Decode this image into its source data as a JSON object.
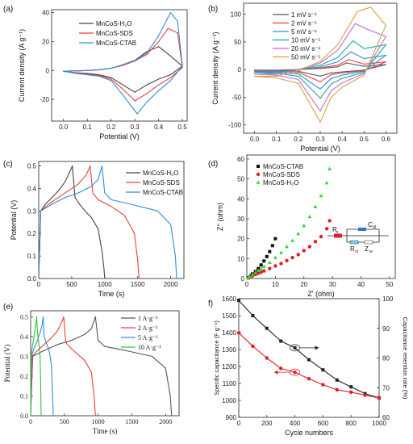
{
  "chart_data": [
    {
      "type": "line",
      "panel": "(a)",
      "xlabel": "Potential (V)",
      "ylabel": "Current density (A g⁻¹)",
      "xlim": [
        -0.05,
        0.52
      ],
      "ylim": [
        -35,
        42
      ],
      "xticks": [
        0.0,
        0.1,
        0.2,
        0.3,
        0.4,
        0.5
      ],
      "xtick_labels": [
        "0.0",
        "0.1",
        "0.2",
        "0.3",
        "0.4",
        "0.5"
      ],
      "yticks": [
        -20,
        0,
        20,
        40
      ],
      "ytick_labels": [
        "-20",
        "0",
        "20",
        "40"
      ],
      "legend": "top-left",
      "series": [
        {
          "name": "MnCoS-H₂O",
          "color": "#444444",
          "x": [
            0.0,
            0.05,
            0.1,
            0.15,
            0.2,
            0.25,
            0.3,
            0.35,
            0.4,
            0.45,
            0.5,
            0.45,
            0.4,
            0.35,
            0.3,
            0.25,
            0.2,
            0.15,
            0.1,
            0.05,
            0.0
          ],
          "y": [
            -0.5,
            -0.3,
            0,
            0.5,
            1.5,
            4,
            7,
            13,
            16.5,
            10,
            3,
            -3,
            -6,
            -10,
            -15,
            -10,
            -5,
            -3,
            -2,
            -1.5,
            -0.5
          ]
        },
        {
          "name": "MnCoS-SDS",
          "color": "#e8413c",
          "x": [
            0.0,
            0.05,
            0.1,
            0.15,
            0.2,
            0.25,
            0.3,
            0.35,
            0.4,
            0.44,
            0.48,
            0.5,
            0.45,
            0.4,
            0.35,
            0.3,
            0.25,
            0.2,
            0.15,
            0.1,
            0.05,
            0.0
          ],
          "y": [
            -0.5,
            -0.3,
            0,
            0.5,
            1.5,
            3.5,
            6.5,
            11,
            20,
            29,
            26,
            2,
            -5,
            -10,
            -16,
            -21,
            -13,
            -6,
            -3.5,
            -2.5,
            -1.5,
            -0.5
          ]
        },
        {
          "name": "MnCoS-CTAB",
          "color": "#2f8fd6",
          "x": [
            0.0,
            0.05,
            0.1,
            0.15,
            0.2,
            0.25,
            0.3,
            0.35,
            0.4,
            0.45,
            0.48,
            0.5,
            0.45,
            0.4,
            0.35,
            0.31,
            0.25,
            0.2,
            0.15,
            0.1,
            0.05,
            0.0
          ],
          "y": [
            -0.5,
            -0.3,
            0,
            0.5,
            1.5,
            4,
            7,
            12,
            24,
            40,
            34,
            3,
            -7,
            -14,
            -22,
            -30,
            -17,
            -7,
            -4,
            -3,
            -2,
            -0.5
          ]
        }
      ]
    },
    {
      "type": "line",
      "panel": "(b)",
      "xlabel": "Potential (V)",
      "ylabel": "Current density (A g⁻¹)",
      "xlim": [
        -0.05,
        0.65
      ],
      "ylim": [
        -115,
        120
      ],
      "xticks": [
        0.0,
        0.1,
        0.2,
        0.3,
        0.4,
        0.5,
        0.6
      ],
      "xtick_labels": [
        "0.0",
        "0.1",
        "0.2",
        "0.3",
        "0.4",
        "0.5",
        "0.6"
      ],
      "yticks": [
        -100,
        -50,
        0,
        50,
        100
      ],
      "ytick_labels": [
        "-100",
        "-50",
        "0",
        "50",
        "100"
      ],
      "legend": "top-left",
      "series": [
        {
          "name": "1 mV s⁻¹",
          "color": "#555555",
          "x": [
            0.0,
            0.1,
            0.2,
            0.3,
            0.38,
            0.42,
            0.5,
            0.6,
            0.5,
            0.4,
            0.35,
            0.3,
            0.2,
            0.1,
            0.0
          ],
          "y": [
            -1,
            -1,
            0,
            2,
            5,
            12,
            6,
            9,
            -1,
            -4,
            -6,
            -12,
            -3,
            -2,
            -1
          ]
        },
        {
          "name": "2 mV s⁻¹",
          "color": "#e8413c",
          "x": [
            0.0,
            0.1,
            0.2,
            0.3,
            0.38,
            0.43,
            0.5,
            0.6,
            0.5,
            0.4,
            0.35,
            0.3,
            0.2,
            0.1,
            0.0
          ],
          "y": [
            -2,
            -2,
            0,
            3,
            8,
            18,
            10,
            14,
            -2,
            -6,
            -9,
            -22,
            -5,
            -3,
            -2
          ]
        },
        {
          "name": "5 mV s⁻¹",
          "color": "#2f8fd6",
          "x": [
            0.0,
            0.1,
            0.2,
            0.3,
            0.38,
            0.44,
            0.5,
            0.6,
            0.5,
            0.4,
            0.35,
            0.3,
            0.2,
            0.1,
            0.0
          ],
          "y": [
            -3,
            -3,
            0,
            5,
            14,
            32,
            20,
            26,
            -3,
            -10,
            -16,
            -35,
            -8,
            -5,
            -3
          ]
        },
        {
          "name": "10 mV s⁻¹",
          "color": "#1fa89a",
          "x": [
            0.0,
            0.1,
            0.2,
            0.3,
            0.38,
            0.45,
            0.5,
            0.6,
            0.5,
            0.4,
            0.35,
            0.3,
            0.2,
            0.1,
            0.0
          ],
          "y": [
            -5,
            -5,
            0,
            8,
            22,
            52,
            38,
            45,
            -5,
            -16,
            -26,
            -52,
            -12,
            -7,
            -5
          ]
        },
        {
          "name": "20 mV s⁻¹",
          "color": "#c36bd6",
          "x": [
            0.0,
            0.1,
            0.2,
            0.3,
            0.38,
            0.46,
            0.52,
            0.6,
            0.5,
            0.4,
            0.35,
            0.3,
            0.2,
            0.1,
            0.0
          ],
          "y": [
            -8,
            -8,
            0,
            12,
            35,
            83,
            72,
            60,
            -7,
            -24,
            -38,
            -75,
            -18,
            -10,
            -8
          ]
        },
        {
          "name": "50 mV s⁻¹",
          "color": "#d9a23c",
          "x": [
            0.0,
            0.1,
            0.2,
            0.3,
            0.38,
            0.47,
            0.53,
            0.6,
            0.5,
            0.4,
            0.35,
            0.3,
            0.2,
            0.1,
            0.0
          ],
          "y": [
            -12,
            -12,
            -2,
            15,
            45,
            105,
            113,
            80,
            -10,
            -32,
            -50,
            -95,
            -25,
            -15,
            -12
          ]
        }
      ]
    },
    {
      "type": "line",
      "panel": "(c)",
      "xlabel": "Time (s)",
      "ylabel": "Potential (V)",
      "xlim": [
        0,
        2200
      ],
      "ylim": [
        0,
        0.52
      ],
      "xticks": [
        0,
        500,
        1000,
        1500,
        2000
      ],
      "xtick_labels": [
        "0",
        "500",
        "1000",
        "1500",
        "2000"
      ],
      "yticks": [
        0.0,
        0.1,
        0.2,
        0.3,
        0.4,
        0.5
      ],
      "ytick_labels": [
        "0.0",
        "0.1",
        "0.2",
        "0.3",
        "0.4",
        "0.5"
      ],
      "legend": "top-right",
      "series": [
        {
          "name": "MnCoS-H₂O",
          "color": "#444444",
          "x": [
            0,
            30,
            100,
            200,
            300,
            400,
            480,
            510,
            550,
            620,
            700,
            800,
            900,
            960,
            990,
            1000
          ],
          "y": [
            0,
            0.3,
            0.33,
            0.36,
            0.39,
            0.43,
            0.48,
            0.5,
            0.36,
            0.33,
            0.3,
            0.27,
            0.22,
            0.12,
            0.04,
            0
          ]
        },
        {
          "name": "MnCoS-SDS",
          "color": "#e8413c",
          "x": [
            0,
            30,
            150,
            300,
            450,
            600,
            720,
            780,
            820,
            900,
            1100,
            1300,
            1450,
            1500,
            1520
          ],
          "y": [
            0,
            0.3,
            0.33,
            0.36,
            0.39,
            0.42,
            0.46,
            0.5,
            0.38,
            0.35,
            0.32,
            0.28,
            0.2,
            0.08,
            0
          ]
        },
        {
          "name": "MnCoS-CTAB",
          "color": "#2f8fd6",
          "x": [
            0,
            30,
            200,
            400,
            600,
            800,
            900,
            960,
            1000,
            1100,
            1400,
            1800,
            2000,
            2070,
            2090
          ],
          "y": [
            0,
            0.3,
            0.33,
            0.36,
            0.38,
            0.41,
            0.44,
            0.5,
            0.38,
            0.35,
            0.33,
            0.3,
            0.24,
            0.1,
            0
          ]
        }
      ]
    },
    {
      "type": "scatter",
      "panel": "(d)",
      "xlabel": "Z' (ohm)",
      "ylabel": "Z'' (ohm)",
      "xlim": [
        0,
        52
      ],
      "ylim": [
        0,
        62
      ],
      "xticks": [
        0,
        10,
        20,
        30,
        40,
        50
      ],
      "xtick_labels": [
        "0",
        "10",
        "20",
        "30",
        "40",
        "50"
      ],
      "yticks": [
        0,
        10,
        20,
        30,
        40,
        50,
        60
      ],
      "ytick_labels": [
        "0",
        "10",
        "20",
        "30",
        "40",
        "50",
        "60"
      ],
      "legend": "top-left",
      "inset_circuit": {
        "labels": [
          "R",
          "C",
          "R",
          "Z"
        ],
        "subscripts": [
          "s",
          "dl",
          "ct",
          "w"
        ]
      },
      "series": [
        {
          "name": "MnCoS-CTAB",
          "color": "#111111",
          "marker": "square",
          "x": [
            0.5,
            1,
            1.5,
            2,
            3,
            4,
            5,
            6,
            7,
            8,
            9,
            10
          ],
          "y": [
            0.3,
            0.8,
            1.5,
            2.3,
            3.5,
            5,
            6.8,
            8.8,
            11,
            13.5,
            16.5,
            20
          ]
        },
        {
          "name": "MnCoS-SDS",
          "color": "#e02020",
          "marker": "circle",
          "x": [
            0.5,
            1,
            2,
            3,
            4,
            5,
            6,
            8,
            10,
            12,
            14,
            16,
            18,
            20,
            22,
            24,
            26,
            28,
            29
          ],
          "y": [
            0.3,
            0.8,
            1.4,
            2,
            2.6,
            3.2,
            3.8,
            5,
            6.3,
            7.5,
            9,
            10.5,
            12,
            14,
            16,
            18.5,
            21,
            25,
            29
          ]
        },
        {
          "name": "MnCoS-H₂O",
          "color": "#33d633",
          "marker": "triangle",
          "x": [
            0.5,
            1,
            2,
            3,
            4,
            5,
            6,
            8,
            10,
            12,
            14,
            16,
            18,
            20,
            22,
            24,
            26,
            28,
            29
          ],
          "y": [
            0.3,
            1,
            2,
            3,
            4,
            5,
            6,
            8,
            10.5,
            13,
            16,
            19,
            22.5,
            26.5,
            31,
            36,
            41.5,
            48,
            55
          ]
        }
      ]
    },
    {
      "type": "line",
      "panel": "(e)",
      "xlabel": "Time (s)",
      "ylabel": "Potential (V)",
      "xlim": [
        0,
        2200
      ],
      "ylim": [
        0,
        0.53
      ],
      "xticks": [
        0,
        500,
        1000,
        1500,
        2000
      ],
      "xtick_labels": [
        "0",
        "500",
        "1000",
        "1500",
        "2000"
      ],
      "yticks": [
        0.0,
        0.1,
        0.2,
        0.3,
        0.4,
        0.5
      ],
      "ytick_labels": [
        "0.0",
        "0.1",
        "0.2",
        "0.3",
        "0.4",
        "0.5"
      ],
      "legend": "top-right",
      "series": [
        {
          "name": "1 A·g⁻¹",
          "color": "#555555",
          "x": [
            0,
            30,
            200,
            400,
            600,
            800,
            900,
            960,
            1000,
            1100,
            1400,
            1800,
            2000,
            2070,
            2090
          ],
          "y": [
            0,
            0.3,
            0.33,
            0.36,
            0.38,
            0.41,
            0.44,
            0.5,
            0.38,
            0.35,
            0.33,
            0.3,
            0.24,
            0.1,
            0
          ]
        },
        {
          "name": "2 A·g⁻¹",
          "color": "#e8413c",
          "x": [
            0,
            20,
            100,
            200,
            300,
            400,
            470,
            490,
            520,
            600,
            700,
            800,
            900,
            940,
            960
          ],
          "y": [
            0,
            0.3,
            0.33,
            0.36,
            0.39,
            0.43,
            0.48,
            0.5,
            0.37,
            0.34,
            0.31,
            0.28,
            0.22,
            0.1,
            0
          ]
        },
        {
          "name": "5 A·g⁻¹",
          "color": "#2f8fd6",
          "x": [
            0,
            10,
            50,
            100,
            150,
            175,
            185,
            200,
            240,
            280,
            310,
            325,
            335
          ],
          "y": [
            0,
            0.3,
            0.34,
            0.38,
            0.43,
            0.47,
            0.5,
            0.4,
            0.36,
            0.32,
            0.25,
            0.1,
            0
          ]
        },
        {
          "name": "10 A·g⁻¹",
          "color": "#33c233",
          "x": [
            0,
            5,
            25,
            50,
            70,
            82,
            88,
            100,
            120,
            140,
            150,
            155
          ],
          "y": [
            0,
            0.3,
            0.35,
            0.4,
            0.45,
            0.48,
            0.5,
            0.42,
            0.37,
            0.3,
            0.15,
            0
          ]
        }
      ]
    },
    {
      "type": "line",
      "panel": "f)",
      "xlabel": "Cycle numbers",
      "ylabel": "Specific capacitance (F g⁻¹)",
      "ylabel_right": "Capacitance retention rate (%)",
      "xlim": [
        0,
        1000
      ],
      "ylim": [
        900,
        1600
      ],
      "ylim_right": [
        60,
        100
      ],
      "xticks": [
        0,
        200,
        400,
        600,
        800,
        1000
      ],
      "xtick_labels": [
        "0",
        "200",
        "400",
        "600",
        "800",
        "1000"
      ],
      "yticks": [
        900,
        1000,
        1100,
        1200,
        1300,
        1400,
        1500,
        1600
      ],
      "ytick_labels": [
        "900",
        "1000",
        "1100",
        "1200",
        "1300",
        "1400",
        "1500",
        "1600"
      ],
      "yticks_right": [
        60,
        70,
        80,
        90,
        100
      ],
      "ytick_labels_right": [
        "60",
        "70",
        "80",
        "90",
        "100"
      ],
      "series": [
        {
          "name": "Specific capacitance",
          "color": "#222222",
          "marker": "square",
          "axis": "left",
          "x": [
            0,
            100,
            200,
            300,
            400,
            500,
            600,
            700,
            800,
            900,
            1000
          ],
          "y": [
            1590,
            1500,
            1425,
            1350,
            1310,
            1240,
            1180,
            1120,
            1080,
            1040,
            1015
          ]
        },
        {
          "name": "Capacitance retention rate",
          "color": "#e02020",
          "marker": "circle",
          "axis": "right",
          "x": [
            0,
            100,
            200,
            300,
            400,
            500,
            600,
            700,
            800,
            900,
            1000
          ],
          "y": [
            88.5,
            84,
            80,
            76.5,
            75.2,
            73,
            71,
            69.3,
            68.5,
            67.5,
            66.5
          ]
        }
      ]
    }
  ]
}
